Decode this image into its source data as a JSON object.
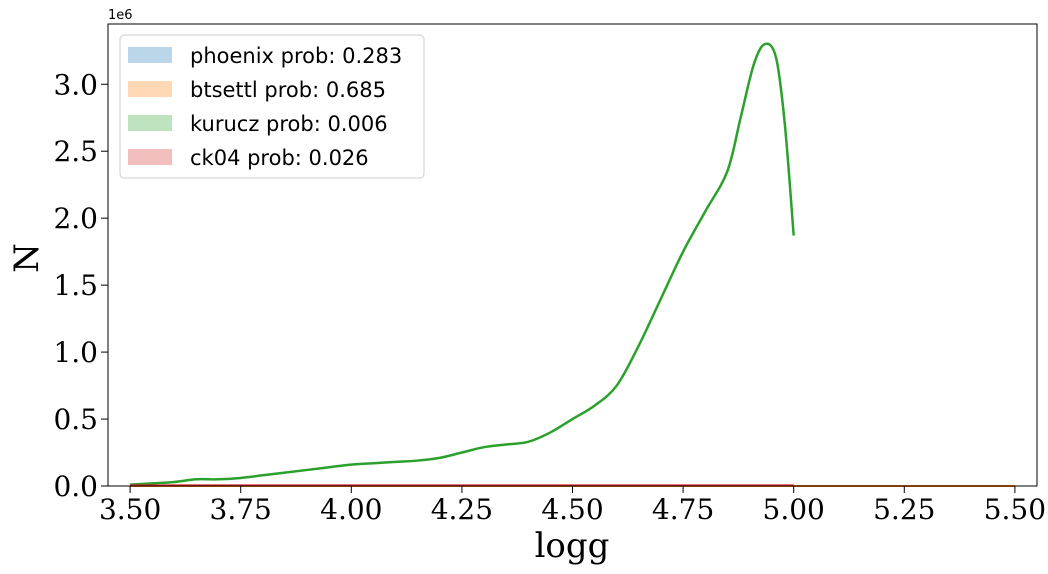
{
  "chart_data": {
    "type": "line",
    "xlabel": "logg",
    "ylabel": "N",
    "y_offset_label": "1e6",
    "xlim": [
      3.45,
      5.55
    ],
    "ylim": [
      0,
      3.45
    ],
    "xticks": [
      3.5,
      3.75,
      4.0,
      4.25,
      4.5,
      4.75,
      5.0,
      5.25,
      5.5
    ],
    "xtick_labels": [
      "3.50",
      "3.75",
      "4.00",
      "4.25",
      "4.50",
      "4.75",
      "5.00",
      "5.25",
      "5.50"
    ],
    "yticks": [
      0,
      0.5,
      1.0,
      1.5,
      2.0,
      2.5,
      3.0
    ],
    "ytick_labels": [
      "0.0",
      "0.5",
      "1.0",
      "1.5",
      "2.0",
      "2.5",
      "3.0"
    ],
    "legend_position": "top-left",
    "series": [
      {
        "name": "phoenix prob: 0.283",
        "color": "#1f77b4",
        "x": [
          3.5,
          5.0
        ],
        "y": [
          0.0,
          0.0
        ]
      },
      {
        "name": "btsettl prob: 0.685",
        "color": "#ff7f0e",
        "x": [
          3.5,
          4.0,
          4.5,
          5.0,
          5.5
        ],
        "y": [
          0.0,
          0.0,
          0.0,
          0.0,
          0.0
        ]
      },
      {
        "name": "kurucz prob: 0.006",
        "color": "#2ca02c",
        "x": [
          3.5,
          3.55,
          3.6,
          3.65,
          3.7,
          3.75,
          3.8,
          3.85,
          3.9,
          3.95,
          4.0,
          4.05,
          4.1,
          4.15,
          4.2,
          4.25,
          4.3,
          4.35,
          4.4,
          4.45,
          4.5,
          4.55,
          4.6,
          4.65,
          4.7,
          4.75,
          4.8,
          4.85,
          4.88,
          4.91,
          4.935,
          4.96,
          4.98,
          5.0
        ],
        "y": [
          0.01,
          0.02,
          0.03,
          0.05,
          0.05,
          0.06,
          0.08,
          0.1,
          0.12,
          0.14,
          0.16,
          0.17,
          0.18,
          0.19,
          0.21,
          0.25,
          0.29,
          0.31,
          0.33,
          0.4,
          0.5,
          0.6,
          0.75,
          1.05,
          1.4,
          1.75,
          2.05,
          2.35,
          2.75,
          3.15,
          3.3,
          3.2,
          2.7,
          1.87
        ]
      },
      {
        "name": "ck04 prob: 0.026",
        "color": "#d62728",
        "x": [
          3.5,
          5.0
        ],
        "y": [
          0.005,
          0.005
        ]
      }
    ]
  }
}
